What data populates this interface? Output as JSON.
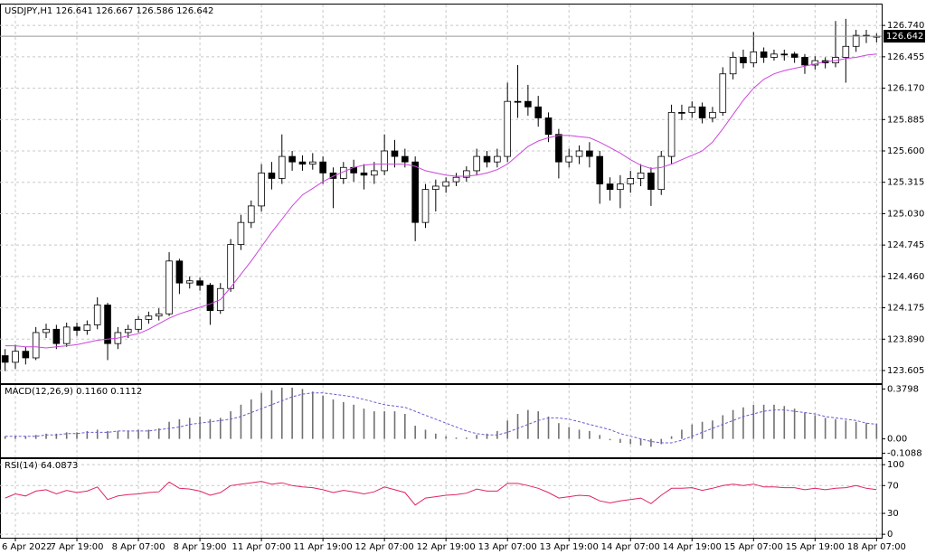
{
  "chart_data": [
    {
      "type": "candlestick",
      "title": "USDJPY,H1  126.641 126.667 126.586 126.642",
      "categories": [
        null,
        "6 Apr 2022",
        null,
        null,
        null,
        null,
        null,
        "7 Apr 19:00",
        null,
        null,
        null,
        null,
        null,
        "8 Apr 07:00",
        null,
        null,
        null,
        null,
        null,
        "8 Apr 19:00",
        null,
        null,
        null,
        null,
        null,
        "11 Apr 07:00",
        null,
        null,
        null,
        null,
        null,
        "11 Apr 19:00",
        null,
        null,
        null,
        null,
        null,
        "12 Apr 07:00",
        null,
        null,
        null,
        null,
        null,
        "12 Apr 19:00",
        null,
        null,
        null,
        null,
        null,
        "13 Apr 07:00",
        null,
        null,
        null,
        null,
        null,
        "13 Apr 19:00",
        null,
        null,
        null,
        null,
        null,
        "14 Apr 07:00",
        null,
        null,
        null,
        null,
        null,
        "14 Apr 19:00",
        null,
        null,
        null,
        null,
        null,
        "15 Apr 07:00",
        null,
        null,
        null,
        null,
        null,
        "15 Apr 19:00",
        null,
        null,
        null,
        null,
        null,
        "18 Apr 07:00"
      ],
      "open": [
        123.74,
        123.68,
        123.78,
        123.72,
        123.95,
        123.98,
        123.85,
        124.0,
        123.97,
        124.02,
        124.2,
        123.85,
        123.95,
        123.98,
        124.07,
        124.1,
        124.12,
        124.6,
        124.4,
        124.42,
        124.38,
        124.15,
        124.35,
        124.75,
        124.95,
        125.1,
        125.4,
        125.35,
        125.55,
        125.5,
        125.48,
        125.5,
        125.4,
        125.35,
        125.45,
        125.4,
        125.38,
        125.42,
        125.6,
        125.55,
        125.5,
        124.95,
        125.25,
        125.28,
        125.32,
        125.36,
        125.42,
        125.55,
        125.5,
        125.55,
        126.05,
        126.05,
        126.0,
        125.9,
        125.75,
        125.5,
        125.55,
        125.6,
        125.55,
        125.3,
        125.25,
        125.3,
        125.35,
        125.4,
        125.25,
        125.55,
        125.95,
        125.95,
        126.0,
        125.9,
        125.95,
        126.3,
        126.45,
        126.4,
        126.5,
        126.45,
        126.48,
        126.48,
        126.45,
        126.38,
        126.42,
        126.4,
        126.45,
        126.55,
        126.65,
        126.641
      ],
      "high": [
        123.8,
        123.84,
        123.82,
        124.0,
        124.03,
        124.02,
        124.04,
        124.04,
        124.06,
        124.27,
        124.22,
        124.0,
        124.02,
        124.1,
        124.14,
        124.17,
        124.68,
        124.62,
        124.46,
        124.45,
        124.4,
        124.4,
        124.8,
        125.02,
        125.15,
        125.48,
        125.5,
        125.75,
        125.6,
        125.56,
        125.58,
        125.55,
        125.45,
        125.5,
        125.52,
        125.48,
        125.5,
        125.75,
        125.7,
        125.62,
        125.55,
        125.3,
        125.34,
        125.36,
        125.4,
        125.46,
        125.62,
        125.6,
        125.62,
        126.22,
        126.38,
        126.2,
        126.1,
        125.95,
        125.8,
        125.62,
        125.65,
        125.68,
        125.6,
        125.36,
        125.38,
        125.42,
        125.48,
        125.45,
        125.6,
        126.02,
        126.02,
        126.05,
        126.04,
        126.0,
        126.36,
        126.5,
        126.52,
        126.68,
        126.54,
        126.52,
        126.52,
        126.5,
        126.48,
        126.46,
        126.45,
        126.78,
        126.8,
        126.7,
        126.7,
        126.667
      ],
      "low": [
        123.6,
        123.62,
        123.66,
        123.7,
        123.9,
        123.8,
        123.82,
        123.92,
        123.93,
        123.98,
        123.7,
        123.8,
        123.9,
        123.95,
        124.03,
        124.06,
        124.1,
        124.3,
        124.35,
        124.33,
        124.02,
        124.12,
        124.32,
        124.7,
        124.9,
        125.05,
        125.25,
        125.3,
        125.42,
        125.42,
        125.43,
        125.3,
        125.08,
        125.3,
        125.32,
        125.25,
        125.3,
        125.38,
        125.45,
        125.45,
        124.78,
        124.9,
        125.05,
        125.22,
        125.28,
        125.32,
        125.38,
        125.45,
        125.45,
        125.5,
        125.9,
        125.92,
        125.82,
        125.68,
        125.35,
        125.45,
        125.48,
        125.45,
        125.12,
        125.15,
        125.08,
        125.22,
        125.28,
        125.1,
        125.2,
        125.48,
        125.88,
        125.9,
        125.85,
        125.86,
        125.92,
        126.25,
        126.35,
        126.36,
        126.4,
        126.42,
        126.42,
        126.4,
        126.3,
        126.34,
        126.35,
        126.36,
        126.22,
        126.5,
        126.58,
        126.586
      ],
      "close": [
        123.68,
        123.78,
        123.72,
        123.95,
        123.98,
        123.85,
        124.0,
        123.97,
        124.02,
        124.2,
        123.85,
        123.95,
        123.98,
        124.07,
        124.1,
        124.12,
        124.6,
        124.4,
        124.42,
        124.38,
        124.15,
        124.35,
        124.75,
        124.95,
        125.1,
        125.4,
        125.35,
        125.55,
        125.5,
        125.48,
        125.5,
        125.4,
        125.35,
        125.45,
        125.4,
        125.38,
        125.42,
        125.6,
        125.55,
        125.5,
        124.95,
        125.25,
        125.28,
        125.32,
        125.36,
        125.42,
        125.55,
        125.5,
        125.55,
        126.05,
        126.05,
        126.0,
        125.9,
        125.75,
        125.5,
        125.55,
        125.6,
        125.55,
        125.3,
        125.25,
        125.3,
        125.35,
        125.4,
        125.25,
        125.55,
        125.95,
        125.95,
        126.0,
        125.9,
        125.95,
        126.3,
        126.45,
        126.4,
        126.5,
        126.45,
        126.48,
        126.48,
        126.45,
        126.38,
        126.42,
        126.4,
        126.45,
        126.55,
        126.65,
        126.65,
        126.642
      ],
      "bull_color": "#ffffff",
      "bear_color": "#000000",
      "series": [
        {
          "type": "line",
          "color": "#cc44dd",
          "values": [
            123.83,
            123.83,
            123.82,
            123.82,
            123.81,
            123.82,
            123.83,
            123.84,
            123.86,
            123.88,
            123.89,
            123.9,
            123.92,
            123.94,
            123.98,
            124.03,
            124.08,
            124.12,
            124.15,
            124.18,
            124.21,
            124.25,
            124.36,
            124.48,
            124.6,
            124.73,
            124.86,
            124.98,
            125.1,
            125.2,
            125.26,
            125.32,
            125.37,
            125.41,
            125.45,
            125.47,
            125.48,
            125.48,
            125.48,
            125.48,
            125.46,
            125.42,
            125.4,
            125.38,
            125.37,
            125.37,
            125.38,
            125.4,
            125.43,
            125.48,
            125.56,
            125.64,
            125.69,
            125.72,
            125.74,
            125.74,
            125.73,
            125.72,
            125.68,
            125.63,
            125.58,
            125.52,
            125.47,
            125.44,
            125.45,
            125.48,
            125.52,
            125.56,
            125.6,
            125.68,
            125.8,
            125.93,
            126.06,
            126.17,
            126.25,
            126.3,
            126.33,
            126.35,
            126.37,
            126.39,
            126.41,
            126.42,
            126.44,
            126.45,
            126.47,
            126.48
          ]
        }
      ],
      "last_price": {
        "value": 126.642,
        "label": "126.642"
      },
      "ylim": [
        123.49,
        126.93
      ],
      "yticks": [
        {
          "value": 126.74,
          "label": "126.740"
        },
        126.455,
        {
          "value": 126.17,
          "label": "126.170"
        },
        125.885,
        {
          "value": 125.6,
          "label": "125.600"
        },
        125.315,
        {
          "value": 125.03,
          "label": "125.030"
        },
        124.745,
        {
          "value": 124.46,
          "label": "124.460"
        },
        124.175,
        {
          "value": 123.89,
          "label": "123.890"
        },
        123.605
      ],
      "grid": true
    },
    {
      "type": "bar",
      "title": "MACD(12,26,9) 0.1160 0.1112",
      "series": [
        {
          "color": "#707070",
          "values": [
            0.02,
            0.02,
            0.02,
            0.03,
            0.04,
            0.04,
            0.05,
            0.05,
            0.06,
            0.07,
            0.06,
            0.06,
            0.06,
            0.07,
            0.07,
            0.08,
            0.13,
            0.15,
            0.16,
            0.17,
            0.15,
            0.16,
            0.21,
            0.26,
            0.3,
            0.35,
            0.37,
            0.39,
            0.39,
            0.38,
            0.36,
            0.33,
            0.3,
            0.28,
            0.26,
            0.23,
            0.21,
            0.21,
            0.21,
            0.19,
            0.1,
            0.07,
            0.04,
            0.02,
            0.01,
            0.01,
            0.03,
            0.04,
            0.06,
            0.14,
            0.19,
            0.22,
            0.21,
            0.17,
            0.12,
            0.09,
            0.07,
            0.06,
            0.03,
            -0.01,
            -0.03,
            -0.04,
            -0.05,
            -0.06,
            -0.04,
            0.02,
            0.07,
            0.11,
            0.13,
            0.14,
            0.18,
            0.22,
            0.24,
            0.26,
            0.26,
            0.26,
            0.25,
            0.23,
            0.2,
            0.18,
            0.16,
            0.15,
            0.14,
            0.13,
            0.12,
            0.116
          ]
        },
        {
          "type": "line",
          "color": "#6a5acd",
          "dash": true,
          "values": [
            0.02,
            0.02,
            0.02,
            0.02,
            0.03,
            0.03,
            0.04,
            0.04,
            0.05,
            0.05,
            0.05,
            0.06,
            0.06,
            0.06,
            0.06,
            0.07,
            0.08,
            0.09,
            0.11,
            0.12,
            0.13,
            0.14,
            0.15,
            0.17,
            0.2,
            0.23,
            0.26,
            0.29,
            0.32,
            0.34,
            0.35,
            0.35,
            0.34,
            0.33,
            0.32,
            0.3,
            0.28,
            0.26,
            0.25,
            0.24,
            0.21,
            0.18,
            0.15,
            0.12,
            0.09,
            0.06,
            0.04,
            0.03,
            0.03,
            0.05,
            0.08,
            0.11,
            0.14,
            0.16,
            0.16,
            0.15,
            0.13,
            0.11,
            0.09,
            0.07,
            0.04,
            0.02,
            0.0,
            -0.02,
            -0.03,
            -0.03,
            -0.01,
            0.02,
            0.05,
            0.08,
            0.11,
            0.14,
            0.17,
            0.19,
            0.21,
            0.22,
            0.22,
            0.21,
            0.2,
            0.19,
            0.17,
            0.16,
            0.15,
            0.14,
            0.12,
            0.1112
          ]
        }
      ],
      "ylim": [
        -0.14,
        0.41
      ],
      "yticks": [
        0.3798,
        {
          "value": 0,
          "label": "0.00"
        },
        -0.1088
      ],
      "grid": false
    },
    {
      "type": "line",
      "title": "RSI(14) 64.0873",
      "series": [
        {
          "color": "#e0245e",
          "values": [
            52,
            58,
            55,
            62,
            64,
            58,
            63,
            60,
            62,
            68,
            50,
            55,
            57,
            58,
            60,
            61,
            75,
            66,
            65,
            62,
            56,
            60,
            70,
            72,
            74,
            76,
            72,
            74,
            70,
            68,
            67,
            64,
            60,
            63,
            61,
            58,
            61,
            68,
            64,
            60,
            42,
            52,
            54,
            56,
            57,
            59,
            65,
            62,
            62,
            73,
            73,
            70,
            66,
            60,
            52,
            54,
            56,
            55,
            48,
            45,
            48,
            50,
            52,
            44,
            56,
            66,
            66,
            67,
            63,
            66,
            70,
            72,
            70,
            72,
            68,
            68,
            67,
            67,
            64,
            66,
            64,
            66,
            67,
            70,
            66,
            64.0873
          ]
        }
      ],
      "ylim": [
        -5,
        108
      ],
      "yticks": [
        100,
        70,
        30,
        0
      ],
      "grid": true
    }
  ]
}
